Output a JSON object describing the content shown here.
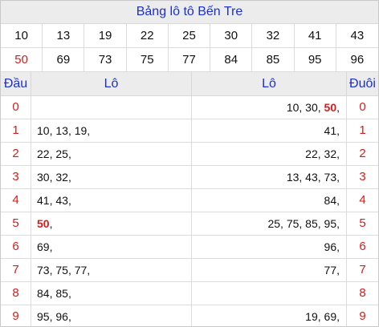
{
  "title": "Bảng lô tô Bến Tre",
  "numbers": [
    {
      "value": "10",
      "highlight": false
    },
    {
      "value": "13",
      "highlight": false
    },
    {
      "value": "19",
      "highlight": false
    },
    {
      "value": "22",
      "highlight": false
    },
    {
      "value": "25",
      "highlight": false
    },
    {
      "value": "30",
      "highlight": false
    },
    {
      "value": "32",
      "highlight": false
    },
    {
      "value": "41",
      "highlight": false
    },
    {
      "value": "43",
      "highlight": false
    },
    {
      "value": "50",
      "highlight": true
    },
    {
      "value": "69",
      "highlight": false
    },
    {
      "value": "73",
      "highlight": false
    },
    {
      "value": "75",
      "highlight": false
    },
    {
      "value": "77",
      "highlight": false
    },
    {
      "value": "84",
      "highlight": false
    },
    {
      "value": "85",
      "highlight": false
    },
    {
      "value": "95",
      "highlight": false
    },
    {
      "value": "96",
      "highlight": false
    }
  ],
  "headers": {
    "dau": "Đầu",
    "lo_left": "Lô",
    "lo_right": "Lô",
    "duoi": "Đuôi"
  },
  "rows": [
    {
      "dau": "0",
      "left": [],
      "right": [
        "10",
        "30",
        "50"
      ],
      "duoi": "0"
    },
    {
      "dau": "1",
      "left": [
        "10",
        "13",
        "19"
      ],
      "right": [
        "41"
      ],
      "duoi": "1"
    },
    {
      "dau": "2",
      "left": [
        "22",
        "25"
      ],
      "right": [
        "22",
        "32"
      ],
      "duoi": "2"
    },
    {
      "dau": "3",
      "left": [
        "30",
        "32"
      ],
      "right": [
        "13",
        "43",
        "73"
      ],
      "duoi": "3"
    },
    {
      "dau": "4",
      "left": [
        "41",
        "43"
      ],
      "right": [
        "84"
      ],
      "duoi": "4"
    },
    {
      "dau": "5",
      "left": [
        "50"
      ],
      "right": [
        "25",
        "75",
        "85",
        "95"
      ],
      "duoi": "5"
    },
    {
      "dau": "6",
      "left": [
        "69"
      ],
      "right": [
        "96"
      ],
      "duoi": "6"
    },
    {
      "dau": "7",
      "left": [
        "73",
        "75",
        "77"
      ],
      "right": [
        "77"
      ],
      "duoi": "7"
    },
    {
      "dau": "8",
      "left": [
        "84",
        "85"
      ],
      "right": [],
      "duoi": "8"
    },
    {
      "dau": "9",
      "left": [
        "95",
        "96"
      ],
      "right": [
        "19",
        "69"
      ],
      "duoi": "9"
    }
  ],
  "highlight_values": [
    "50"
  ],
  "colors": {
    "accent": "#1a2fd6",
    "highlight": "#d51c1c",
    "header_bg": "#ececec"
  }
}
